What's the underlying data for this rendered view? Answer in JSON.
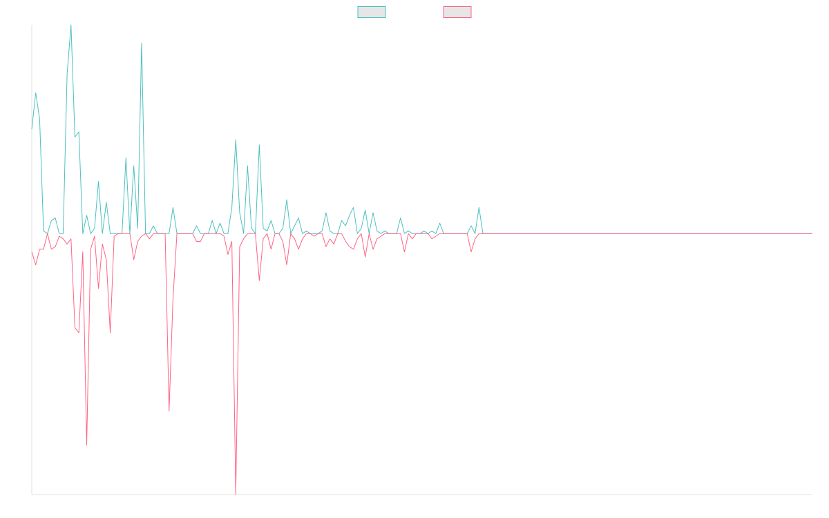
{
  "chart_data": {
    "type": "line",
    "ylim": [
      -100,
      80
    ],
    "series": [
      {
        "color": "#4bc0c0",
        "values": [
          40,
          54,
          44,
          1,
          0,
          5,
          6,
          0,
          0,
          61,
          80,
          37,
          39,
          0,
          7,
          0,
          2,
          20,
          0,
          12,
          0,
          0,
          0,
          0,
          29,
          0,
          26,
          2,
          73,
          0,
          0,
          3,
          0,
          0,
          0,
          0,
          10,
          0,
          0,
          0,
          0,
          0,
          3,
          0,
          0,
          0,
          5,
          0,
          4,
          0,
          0,
          10,
          36,
          8,
          0,
          26,
          2,
          0,
          34,
          2,
          1,
          5,
          0,
          0,
          2,
          13,
          0,
          3,
          6,
          0,
          1,
          0,
          0,
          0,
          1,
          8,
          1,
          0,
          0,
          5,
          3,
          7,
          10,
          0,
          2,
          9,
          0,
          8,
          1,
          0,
          1,
          0,
          0,
          0,
          6,
          0,
          1,
          0,
          0,
          0,
          1,
          0,
          1,
          0,
          4,
          0,
          0,
          0,
          0,
          0,
          0,
          0,
          3,
          0,
          10,
          0,
          0,
          0,
          0,
          0,
          0,
          0,
          0,
          0,
          0,
          0,
          0,
          0,
          0,
          0,
          0,
          0,
          0,
          0,
          0,
          0,
          0,
          0,
          0,
          0,
          0,
          0,
          0,
          0,
          0,
          0,
          0,
          0,
          0,
          0,
          0,
          0,
          0,
          0,
          0,
          0,
          0,
          0,
          0,
          0,
          0,
          0,
          0,
          0,
          0,
          0,
          0,
          0,
          0,
          0,
          0,
          0,
          0,
          0,
          0,
          0,
          0,
          0,
          0,
          0,
          0,
          0,
          0,
          0,
          0,
          0,
          0,
          0,
          0,
          0,
          0,
          0,
          0,
          0,
          0,
          0,
          0,
          0,
          0,
          0
        ]
      },
      {
        "color": "#ff6384",
        "values": [
          -7,
          -12,
          -6,
          -6,
          0,
          -6,
          -5,
          -1,
          -2,
          -4,
          -2,
          -36,
          -38,
          -7,
          -81,
          -6,
          -1,
          -21,
          -4,
          -10,
          -38,
          -1,
          0,
          0,
          0,
          0,
          -10,
          -3,
          -1,
          0,
          -2,
          0,
          0,
          0,
          0,
          -68,
          -25,
          0,
          0,
          0,
          0,
          0,
          -3,
          -3,
          0,
          0,
          0,
          0,
          0,
          -1,
          -8,
          -3,
          -100,
          -5,
          -2,
          0,
          0,
          0,
          -18,
          -2,
          0,
          -6,
          0,
          0,
          -3,
          -12,
          0,
          -2,
          -6,
          -2,
          0,
          0,
          -1,
          0,
          0,
          -5,
          -2,
          -4,
          0,
          0,
          -3,
          -5,
          -6,
          -2,
          0,
          -9,
          0,
          -6,
          -2,
          -1,
          0,
          0,
          0,
          0,
          0,
          -7,
          0,
          -2,
          0,
          0,
          0,
          0,
          -2,
          -1,
          0,
          0,
          0,
          0,
          0,
          0,
          0,
          0,
          -7,
          -2,
          0,
          0,
          0,
          0,
          0,
          0,
          0,
          0,
          0,
          0,
          0,
          0,
          0,
          0,
          0,
          0,
          0,
          0,
          0,
          0,
          0,
          0,
          0,
          0,
          0,
          0,
          0,
          0,
          0,
          0,
          0,
          0,
          0,
          0,
          0,
          0,
          0,
          0,
          0,
          0,
          0,
          0,
          0,
          0,
          0,
          0,
          0,
          0,
          0,
          0,
          0,
          0,
          0,
          0,
          0,
          0,
          0,
          0,
          0,
          0,
          0,
          0,
          0,
          0,
          0,
          0,
          0,
          0,
          0,
          0,
          0,
          0,
          0,
          0,
          0,
          0,
          0,
          0,
          0,
          0,
          0,
          0,
          0,
          0,
          0,
          0
        ]
      }
    ]
  }
}
